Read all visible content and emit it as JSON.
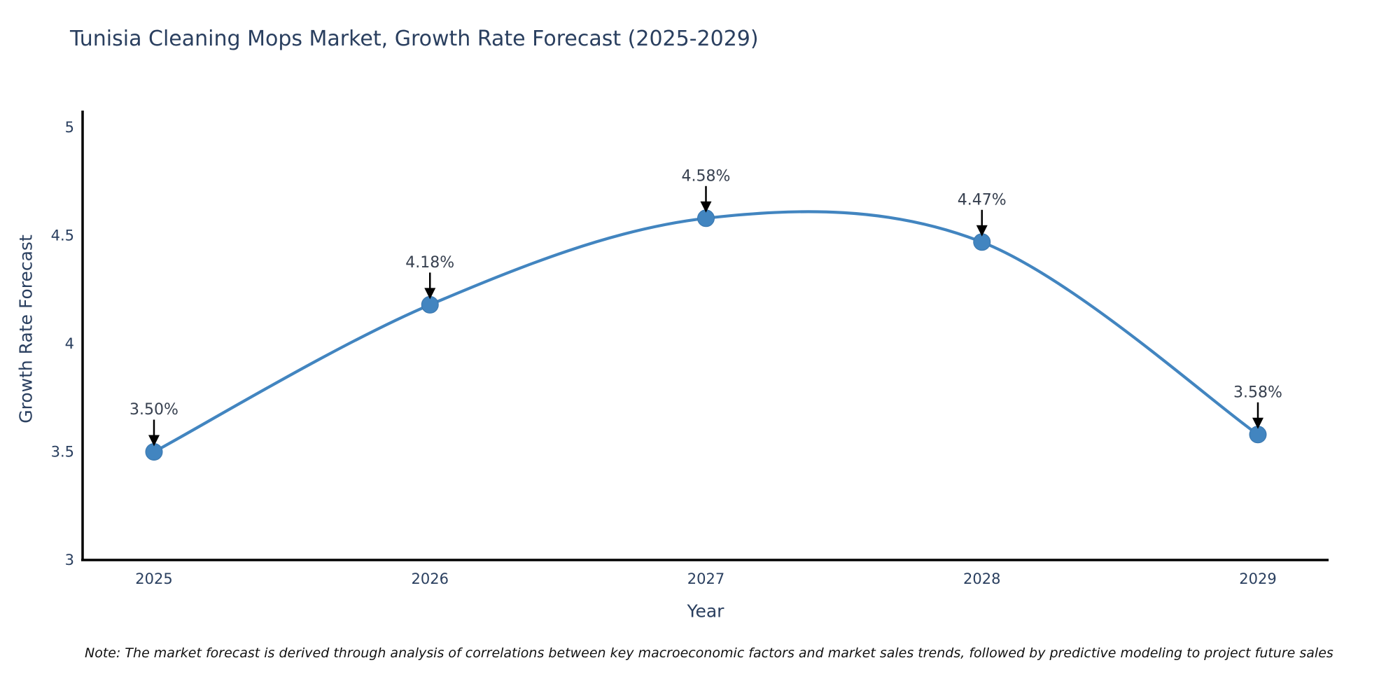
{
  "chart_data": {
    "type": "line",
    "title": "Tunisia Cleaning Mops Market, Growth Rate Forecast (2025-2029)",
    "xlabel": "Year",
    "ylabel": "Growth Rate Forecast",
    "x": [
      2025,
      2026,
      2027,
      2028,
      2029
    ],
    "y": [
      3.5,
      4.18,
      4.58,
      4.47,
      3.58
    ],
    "point_labels": [
      "3.50%",
      "4.18%",
      "4.58%",
      "4.47%",
      "3.58%"
    ],
    "x_tick_labels": [
      "2025",
      "2026",
      "2027",
      "2028",
      "2029"
    ],
    "y_tick_values": [
      3,
      3.5,
      4,
      4.5,
      5
    ],
    "y_tick_labels": [
      "3",
      "3.5",
      "4",
      "4.5",
      "5"
    ],
    "ylim": [
      3,
      5.08
    ],
    "grid": false,
    "legend": "none",
    "line_shape": "spline",
    "line_color": "#4285c0",
    "marker_color": "#4285c0",
    "marker_edge_color": "#3a76ad",
    "axis_color": "#000000",
    "tick_color": "#2a3f5f",
    "annotation_text_color": "#37404f",
    "arrow_color": "#000000"
  },
  "note": "Note: The market forecast is derived through analysis of correlations between key macroeconomic factors and market sales trends, followed by predictive modeling to project future sales"
}
